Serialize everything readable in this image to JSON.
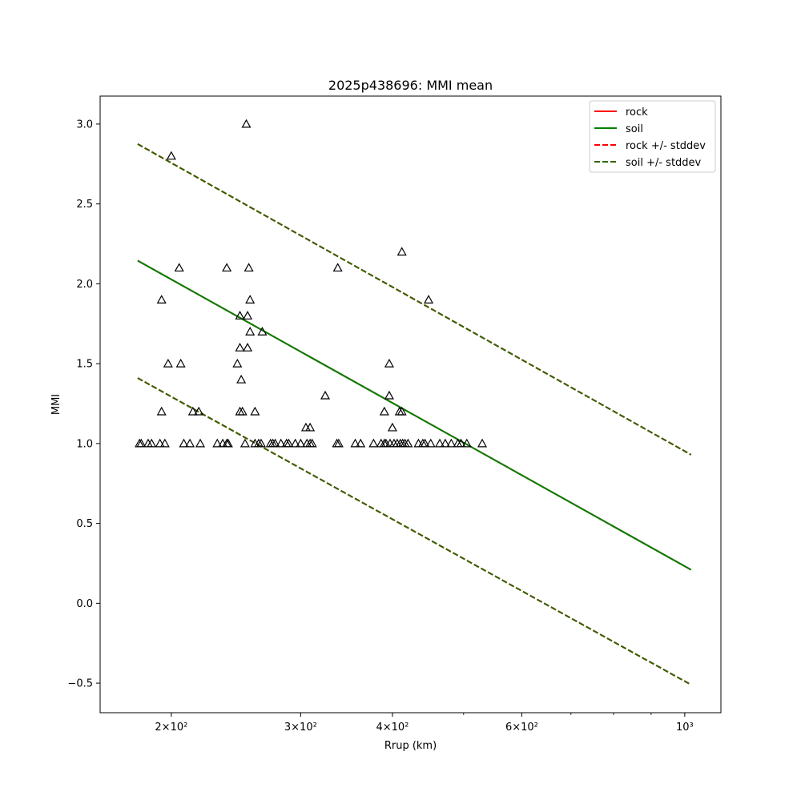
{
  "chart_data": {
    "type": "scatter",
    "title": "2025p438696: MMI mean",
    "xlabel": "Rrup (km)",
    "ylabel": "MMI",
    "xscale": "log",
    "xlim": [
      160,
      1120
    ],
    "ylim": [
      -0.685,
      3.175
    ],
    "grid": false,
    "legend_position": "top-right",
    "x_ticks": [
      {
        "value": 200,
        "label": "2×10²"
      },
      {
        "value": 300,
        "label": "3×10²"
      },
      {
        "value": 400,
        "label": "4×10²"
      },
      {
        "value": 600,
        "label": "6×10²"
      },
      {
        "value": 1000,
        "label": "10³"
      }
    ],
    "x_minor_ticks": [
      500,
      700,
      800,
      900
    ],
    "y_ticks": [
      {
        "value": -0.5,
        "label": "−0.5"
      },
      {
        "value": 0.0,
        "label": "0.0"
      },
      {
        "value": 0.5,
        "label": "0.5"
      },
      {
        "value": 1.0,
        "label": "1.0"
      },
      {
        "value": 1.5,
        "label": "1.5"
      },
      {
        "value": 2.0,
        "label": "2.0"
      },
      {
        "value": 2.5,
        "label": "2.5"
      },
      {
        "value": 3.0,
        "label": "3.0"
      }
    ],
    "lines": [
      {
        "name": "rock",
        "color": "#ff0000",
        "dash": false,
        "x": [
          180,
          1020
        ],
        "y": [
          2.145,
          0.21
        ]
      },
      {
        "name": "soil",
        "color": "#008000",
        "dash": false,
        "x": [
          180,
          1020
        ],
        "y": [
          2.145,
          0.21
        ]
      },
      {
        "name": "rock +/- stddev",
        "color": "#ff0000",
        "dash": true,
        "x": [
          180,
          1020
        ],
        "y": [
          2.875,
          0.93
        ],
        "x2": [
          180,
          1020
        ],
        "y2": [
          1.41,
          -0.51
        ]
      },
      {
        "name": "soil +/- stddev",
        "color": "#2f6400",
        "dash": true,
        "x": [
          180,
          1020
        ],
        "y": [
          2.875,
          0.93
        ],
        "x2": [
          180,
          1020
        ],
        "y2": [
          1.41,
          -0.51
        ]
      }
    ],
    "stations": {
      "marker": "triangle-open",
      "color": "#000000",
      "points": [
        [
          253,
          3.0
        ],
        [
          200,
          2.8
        ],
        [
          412,
          2.2
        ],
        [
          205,
          2.1
        ],
        [
          238,
          2.1
        ],
        [
          255,
          2.1
        ],
        [
          337,
          2.1
        ],
        [
          194,
          1.9
        ],
        [
          256,
          1.9
        ],
        [
          448,
          1.9
        ],
        [
          248,
          1.8
        ],
        [
          254,
          1.8
        ],
        [
          256,
          1.7
        ],
        [
          266,
          1.7
        ],
        [
          248,
          1.6
        ],
        [
          254,
          1.6
        ],
        [
          198,
          1.5
        ],
        [
          206,
          1.5
        ],
        [
          246,
          1.5
        ],
        [
          396,
          1.5
        ],
        [
          249,
          1.4
        ],
        [
          324,
          1.3
        ],
        [
          396,
          1.3
        ],
        [
          194,
          1.2
        ],
        [
          214,
          1.2
        ],
        [
          218,
          1.2
        ],
        [
          248,
          1.2
        ],
        [
          250,
          1.2
        ],
        [
          260,
          1.2
        ],
        [
          390,
          1.2
        ],
        [
          409,
          1.2
        ],
        [
          412,
          1.2
        ],
        [
          305,
          1.1
        ],
        [
          309,
          1.1
        ],
        [
          400,
          1.1
        ],
        [
          181,
          1.0
        ],
        [
          182,
          1.0
        ],
        [
          186,
          1.0
        ],
        [
          188,
          1.0
        ],
        [
          193,
          1.0
        ],
        [
          196,
          1.0
        ],
        [
          208,
          1.0
        ],
        [
          212,
          1.0
        ],
        [
          219,
          1.0
        ],
        [
          231,
          1.0
        ],
        [
          235,
          1.0
        ],
        [
          238,
          1.0
        ],
        [
          239,
          1.0
        ],
        [
          252,
          1.0
        ],
        [
          260,
          1.0
        ],
        [
          263,
          1.0
        ],
        [
          265,
          1.0
        ],
        [
          273,
          1.0
        ],
        [
          275,
          1.0
        ],
        [
          277,
          1.0
        ],
        [
          282,
          1.0
        ],
        [
          287,
          1.0
        ],
        [
          289,
          1.0
        ],
        [
          295,
          1.0
        ],
        [
          300,
          1.0
        ],
        [
          306,
          1.0
        ],
        [
          309,
          1.0
        ],
        [
          311,
          1.0
        ],
        [
          336,
          1.0
        ],
        [
          338,
          1.0
        ],
        [
          356,
          1.0
        ],
        [
          362,
          1.0
        ],
        [
          377,
          1.0
        ],
        [
          386,
          1.0
        ],
        [
          390,
          1.0
        ],
        [
          392,
          1.0
        ],
        [
          397,
          1.0
        ],
        [
          402,
          1.0
        ],
        [
          406,
          1.0
        ],
        [
          410,
          1.0
        ],
        [
          413,
          1.0
        ],
        [
          416,
          1.0
        ],
        [
          420,
          1.0
        ],
        [
          434,
          1.0
        ],
        [
          440,
          1.0
        ],
        [
          443,
          1.0
        ],
        [
          451,
          1.0
        ],
        [
          464,
          1.0
        ],
        [
          472,
          1.0
        ],
        [
          481,
          1.0
        ],
        [
          491,
          1.0
        ],
        [
          496,
          1.0
        ],
        [
          505,
          1.0
        ],
        [
          530,
          1.0
        ]
      ]
    }
  }
}
